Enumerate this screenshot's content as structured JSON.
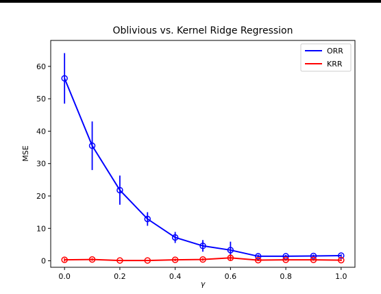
{
  "chart_data": {
    "type": "line",
    "title": "Oblivious vs. Kernel Ridge Regression",
    "xlabel": "γ",
    "ylabel": "MSE",
    "xlim": [
      -0.05,
      1.05
    ],
    "ylim": [
      -2,
      68
    ],
    "x_ticks": [
      "0.0",
      "0.2",
      "0.4",
      "0.6",
      "0.8",
      "1.0"
    ],
    "y_ticks": [
      "0",
      "10",
      "20",
      "30",
      "40",
      "50",
      "60"
    ],
    "x": [
      0.0,
      0.1,
      0.2,
      0.3,
      0.4,
      0.5,
      0.6,
      0.7,
      0.8,
      0.9,
      1.0
    ],
    "legend_position": "top-right",
    "grid": false,
    "series": [
      {
        "name": "ORR",
        "color": "#0000ff",
        "values": [
          56.3,
          35.5,
          21.8,
          12.9,
          7.2,
          4.6,
          3.3,
          1.4,
          1.4,
          1.5,
          1.6
        ],
        "errors": [
          7.8,
          7.5,
          4.5,
          2.1,
          1.7,
          1.8,
          2.6,
          0.5,
          0.4,
          0.4,
          0.4
        ]
      },
      {
        "name": "KRR",
        "color": "#ff0000",
        "values": [
          0.3,
          0.4,
          0.1,
          0.1,
          0.3,
          0.4,
          0.9,
          0.2,
          0.3,
          0.3,
          0.2
        ],
        "errors": [
          0.5,
          0.4,
          0.2,
          0.2,
          0.4,
          0.4,
          0.9,
          0.3,
          0.3,
          0.3,
          0.3
        ]
      }
    ]
  }
}
